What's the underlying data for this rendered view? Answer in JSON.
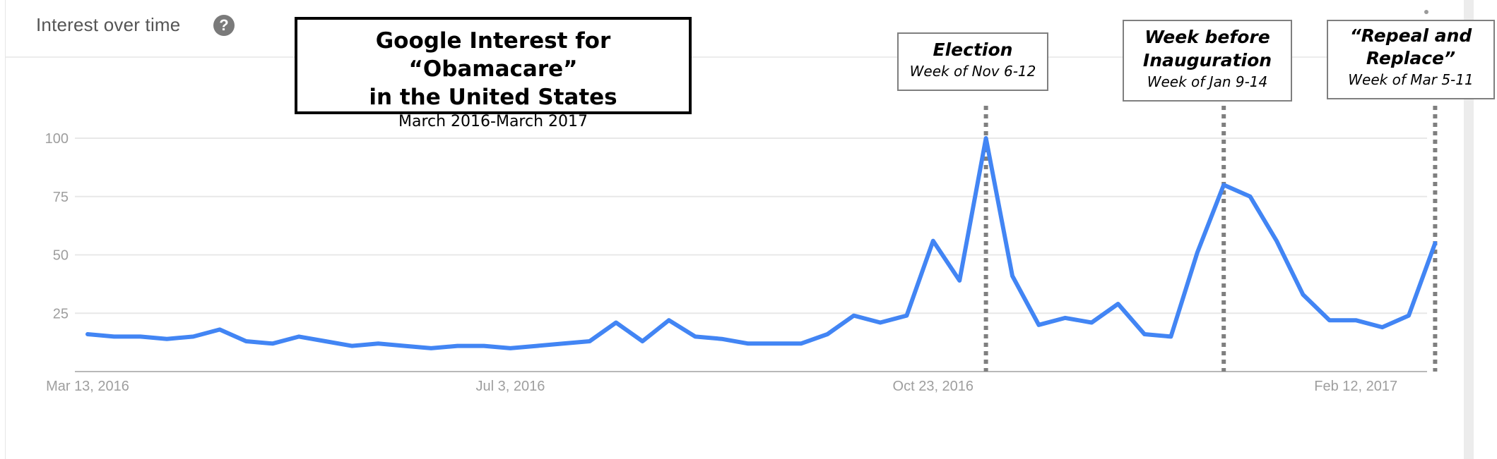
{
  "header": {
    "title": "Interest over time",
    "help_icon": "help-circle-icon",
    "help_glyph": "?"
  },
  "colors": {
    "series": "#4285f4",
    "gridline": "#e8e8e8",
    "axis_label": "#9e9e9e",
    "marker_line": "#7f7f7f"
  },
  "chart_data": {
    "type": "line",
    "title_lines": [
      "Google Interest for “Obamacare”",
      "in the United States"
    ],
    "subtitle": "March 2016-March 2017",
    "xlabel": "",
    "ylabel": "",
    "ylim": [
      0,
      100
    ],
    "y_ticks": [
      100,
      75,
      50,
      25
    ],
    "x_tick_labels": [
      "Mar 13, 2016",
      "Jul 3, 2016",
      "Oct 23, 2016",
      "Feb 12, 2017"
    ],
    "x_tick_indices": [
      0,
      16,
      32,
      48
    ],
    "grid": true,
    "series": [
      {
        "values": [
          16,
          15,
          15,
          14,
          15,
          18,
          13,
          12,
          15,
          13,
          11,
          12,
          11,
          10,
          11,
          11,
          10,
          11,
          12,
          13,
          21,
          13,
          22,
          15,
          14,
          12,
          12,
          12,
          16,
          24,
          21,
          24,
          56,
          39,
          100,
          41,
          20,
          23,
          21,
          29,
          16,
          15,
          51,
          80,
          75,
          56,
          33,
          22,
          22,
          19,
          24,
          55
        ]
      }
    ],
    "annotations": [
      {
        "head": "Election",
        "sub": "Week of Nov 6-12",
        "index": 34
      },
      {
        "head": "Week before Inauguration",
        "head_lines": [
          "Week before",
          "Inauguration"
        ],
        "sub": "Week of Jan 9-14",
        "index": 43
      },
      {
        "head": "“Repeal and Replace”",
        "head_lines": [
          "“Repeal and",
          "Replace”"
        ],
        "sub": "Week of  Mar 5-11",
        "index": 51
      }
    ]
  }
}
